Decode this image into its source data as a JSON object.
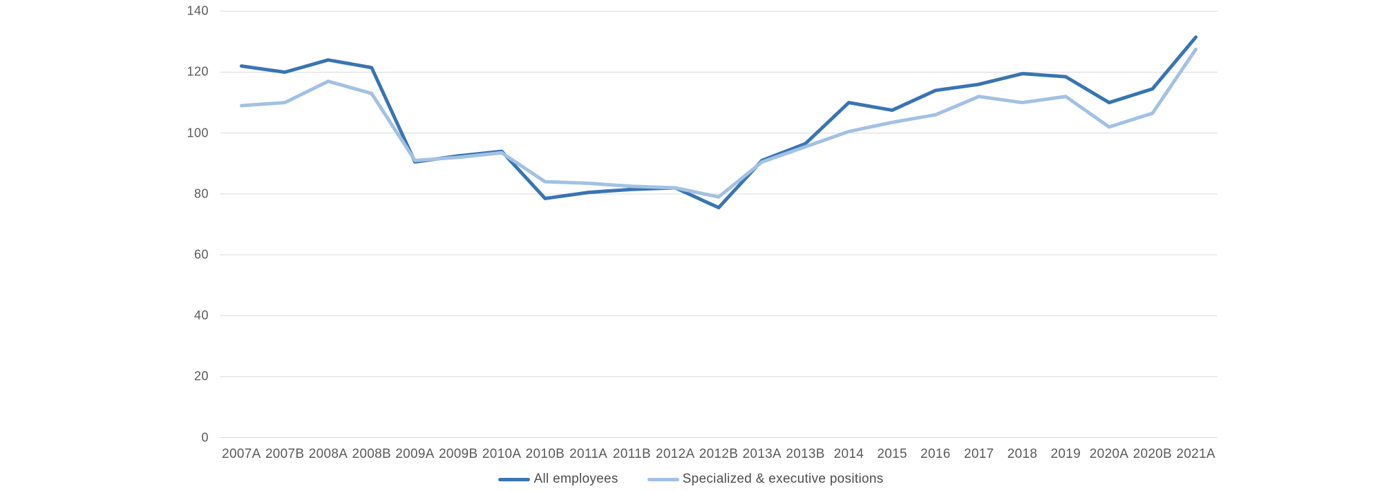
{
  "chart_data": {
    "type": "line",
    "title": "",
    "categories": [
      "2007A",
      "2007B",
      "2008A",
      "2008B",
      "2009A",
      "2009B",
      "2010A",
      "2010B",
      "2011A",
      "2011B",
      "2012A",
      "2012B",
      "2013A",
      "2013B",
      "2014",
      "2015",
      "2016",
      "2017",
      "2018",
      "2019",
      "2020A",
      "2020B",
      "2021A"
    ],
    "series": [
      {
        "name": "All employees",
        "color": "#3974B3",
        "values": [
          122,
          120,
          124,
          121.5,
          90.5,
          92.5,
          94,
          78.5,
          80.5,
          81.5,
          82,
          75.5,
          91,
          96.5,
          110,
          107.5,
          114,
          116,
          119.5,
          118.5,
          110,
          114.5,
          131.5
        ]
      },
      {
        "name": "Specialized & executive positions",
        "color": "#A2C1E3",
        "values": [
          109,
          110,
          117,
          113,
          91,
          92,
          93.5,
          84,
          83.5,
          82.5,
          82,
          79,
          90.5,
          95.5,
          100.5,
          103.5,
          106,
          112,
          110,
          112,
          102,
          106.5,
          127.5
        ]
      }
    ],
    "ylim": [
      0,
      140
    ],
    "y_ticks": [
      0,
      20,
      40,
      60,
      80,
      100,
      120,
      140
    ],
    "xlabel": "",
    "ylabel": "",
    "grid": "horizontal",
    "gridline_color": "#D9D9D9",
    "axis_label_color": "#595959",
    "legend_position": "bottom-center",
    "line_width": 5
  }
}
